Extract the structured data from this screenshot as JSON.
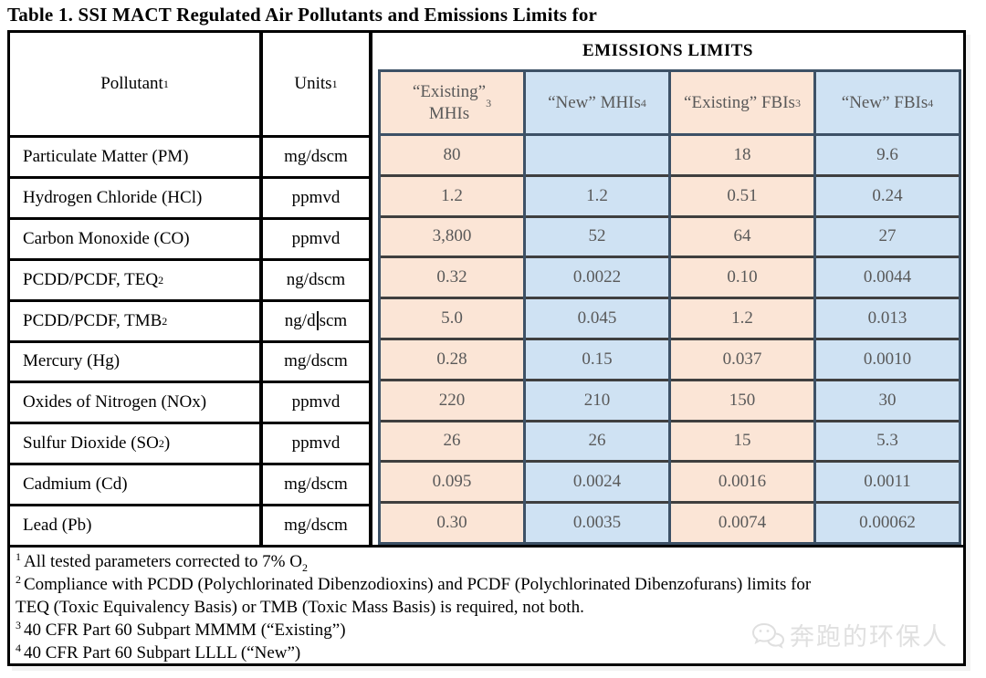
{
  "title": "Table 1. SSI MACT Regulated Air Pollutants and Emissions Limits for",
  "colors": {
    "pink": "#fbe5d6",
    "blue": "#cfe2f3",
    "frame": "#3d5166",
    "separator": "#3f3f3f",
    "value_text": "#595959",
    "watermark": "#e0e0e0"
  },
  "table": {
    "pollutant_header": {
      "parts": [
        {
          "t": "Pollutant"
        },
        {
          "sup": "1"
        }
      ]
    },
    "units_header": {
      "parts": [
        {
          "t": "Units"
        },
        {
          "sup": "1"
        }
      ]
    },
    "emissions_header": "EMISSIONS LIMITS",
    "columns": [
      {
        "tone": "pink",
        "parts": [
          {
            "t": "“Existing”"
          },
          {
            "br": true
          },
          {
            "t": "MHIs"
          },
          {
            "sup": "3"
          }
        ]
      },
      {
        "tone": "blue",
        "parts": [
          {
            "t": "“New” MHIs"
          },
          {
            "sup": "4"
          }
        ]
      },
      {
        "tone": "pink",
        "parts": [
          {
            "t": "“Existing” FBIs"
          },
          {
            "sup": "3"
          }
        ]
      },
      {
        "tone": "blue",
        "parts": [
          {
            "t": "“New” FBIs"
          },
          {
            "sup": "4"
          }
        ]
      }
    ],
    "rows": [
      {
        "pollutant": {
          "parts": [
            {
              "t": "Particulate Matter (PM)"
            }
          ]
        },
        "unit": {
          "parts": [
            {
              "t": "mg/dscm"
            }
          ]
        },
        "values": [
          "80",
          "",
          "18",
          "9.6"
        ]
      },
      {
        "pollutant": {
          "parts": [
            {
              "t": "Hydrogen Chloride (HCl)"
            }
          ]
        },
        "unit": {
          "parts": [
            {
              "t": "ppmvd"
            }
          ]
        },
        "values": [
          "1.2",
          "1.2",
          "0.51",
          "0.24"
        ]
      },
      {
        "pollutant": {
          "parts": [
            {
              "t": "Carbon Monoxide (CO)"
            }
          ]
        },
        "unit": {
          "parts": [
            {
              "t": "ppmvd"
            }
          ]
        },
        "values": [
          "3,800",
          "52",
          "64",
          "27"
        ]
      },
      {
        "pollutant": {
          "parts": [
            {
              "t": "PCDD/PCDF, TEQ"
            },
            {
              "sup": "2"
            }
          ]
        },
        "unit": {
          "parts": [
            {
              "t": "ng/dscm"
            }
          ]
        },
        "values": [
          "0.32",
          "0.0022",
          "0.10",
          "0.0044"
        ]
      },
      {
        "pollutant": {
          "parts": [
            {
              "t": "PCDD/PCDF, TMB"
            },
            {
              "sup": "2"
            }
          ]
        },
        "unit": {
          "parts": [
            {
              "t": "ng/d"
            },
            {
              "caret": true
            },
            {
              "t": "scm"
            }
          ]
        },
        "values": [
          "5.0",
          "0.045",
          "1.2",
          "0.013"
        ]
      },
      {
        "pollutant": {
          "parts": [
            {
              "t": "Mercury (Hg)"
            }
          ]
        },
        "unit": {
          "parts": [
            {
              "t": "mg/dscm"
            }
          ]
        },
        "values": [
          "0.28",
          "0.15",
          "0.037",
          "0.0010"
        ]
      },
      {
        "pollutant": {
          "parts": [
            {
              "t": "Oxides of Nitrogen (NOx)"
            }
          ]
        },
        "unit": {
          "parts": [
            {
              "t": "ppmvd"
            }
          ]
        },
        "values": [
          "220",
          "210",
          "150",
          "30"
        ]
      },
      {
        "pollutant": {
          "parts": [
            {
              "t": "Sulfur Dioxide (SO"
            },
            {
              "sub": "2"
            },
            {
              "t": ")"
            }
          ]
        },
        "unit": {
          "parts": [
            {
              "t": "ppmvd"
            }
          ]
        },
        "values": [
          "26",
          "26",
          "15",
          "5.3"
        ]
      },
      {
        "pollutant": {
          "parts": [
            {
              "t": "Cadmium (Cd)"
            }
          ]
        },
        "unit": {
          "parts": [
            {
              "t": "mg/dscm"
            }
          ]
        },
        "values": [
          "0.095",
          "0.0024",
          "0.0016",
          "0.0011"
        ]
      },
      {
        "pollutant": {
          "parts": [
            {
              "t": "Lead (Pb)"
            }
          ]
        },
        "unit": {
          "parts": [
            {
              "t": "mg/dscm"
            }
          ]
        },
        "values": [
          "0.30",
          "0.0035",
          "0.0074",
          "0.00062"
        ]
      }
    ]
  },
  "footnotes": [
    {
      "sup": "1",
      "parts": [
        {
          "t": "All tested parameters corrected to 7% O"
        },
        {
          "sub": "2"
        }
      ]
    },
    {
      "sup": "2",
      "parts": [
        {
          "t": "Compliance with PCDD (Polychlorinated Dibenzodioxins) and PCDF (Polychlorinated Dibenzofurans) limits for"
        },
        {
          "br": true
        },
        {
          "t": " TEQ (Toxic Equivalency Basis) or TMB (Toxic Mass Basis) is required, not both."
        }
      ]
    },
    {
      "sup": "3",
      "parts": [
        {
          "t": "40 CFR Part 60 Subpart MMMM (“Existing”)"
        }
      ]
    },
    {
      "sup": "4",
      "parts": [
        {
          "t": "40 CFR Part 60 Subpart LLLL (“New”)"
        }
      ]
    }
  ],
  "watermark": {
    "text": "奔跑的环保人",
    "icon": "wechat-logo"
  }
}
